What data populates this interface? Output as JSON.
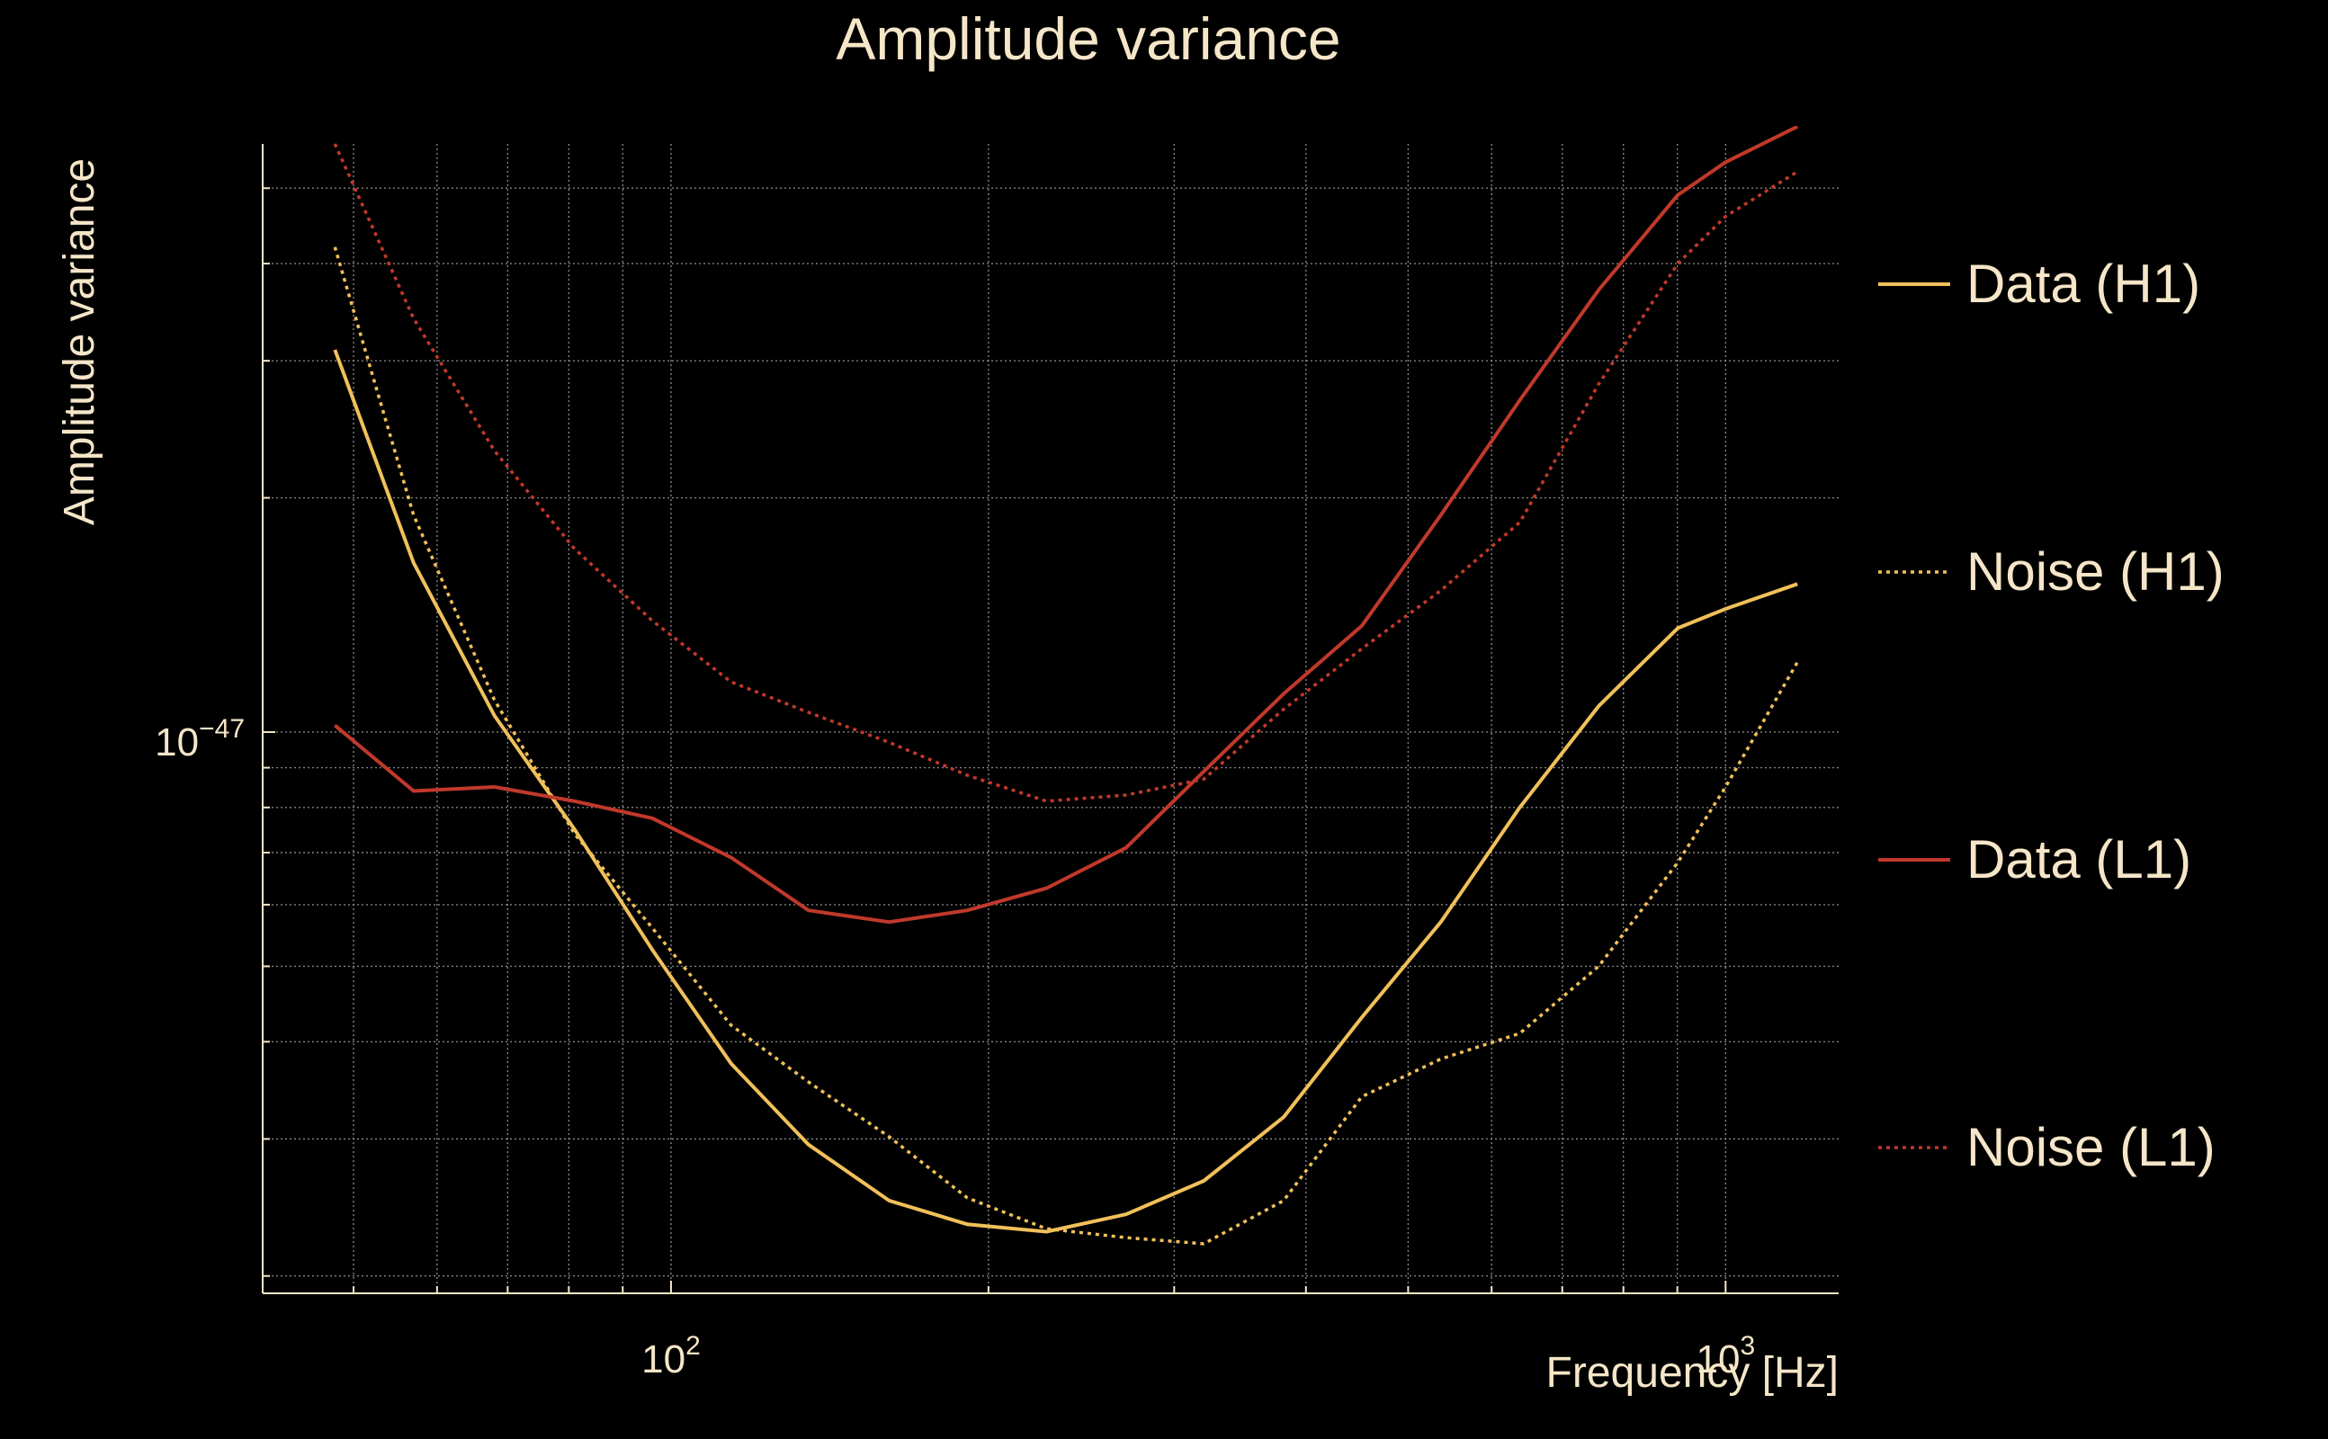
{
  "chart_data": {
    "type": "line",
    "title": "Amplitude variance",
    "xlabel": "Frequency [Hz]",
    "ylabel": "Amplitude variance",
    "x_scale": "log",
    "y_scale": "log",
    "xlim": [
      41,
      1280
    ],
    "ylim": [
      1.9e-48,
      5.7e-47
    ],
    "x_ticks": [
      {
        "value": 100,
        "base": "10",
        "exp": "2"
      },
      {
        "value": 1000,
        "base": "10",
        "exp": "3"
      }
    ],
    "y_ticks": [
      {
        "value": 1e-47,
        "base": "10",
        "exp": "−47"
      }
    ],
    "grid": true,
    "legend_position": "right",
    "x": [
      48,
      57,
      68,
      81,
      96,
      114,
      135,
      161,
      191,
      227,
      270,
      320,
      381,
      452,
      537,
      638,
      758,
      901,
      1000,
      1170
    ],
    "series": [
      {
        "name": "Data (H1)",
        "color": "#f0c05a",
        "dash": "solid",
        "values": [
          3.1e-47,
          1.65e-47,
          1.05e-47,
          7.5e-48,
          5.25e-48,
          3.75e-48,
          2.95e-48,
          2.5e-48,
          2.33e-48,
          2.28e-48,
          2.4e-48,
          2.65e-48,
          3.2e-48,
          4.3e-48,
          5.7e-48,
          8e-48,
          1.08e-47,
          1.36e-47,
          1.44e-47,
          1.55e-47
        ]
      },
      {
        "name": "Noise (H1)",
        "color": "#f0c05a",
        "dash": "dotted",
        "values": [
          4.2e-47,
          1.9e-47,
          1.1e-47,
          7.4e-48,
          5.6e-48,
          4.2e-48,
          3.55e-48,
          3.02e-48,
          2.52e-48,
          2.3e-48,
          2.24e-48,
          2.2e-48,
          2.5e-48,
          3.4e-48,
          3.8e-48,
          4.1e-48,
          5e-48,
          6.8e-48,
          8.5e-48,
          1.23e-47
        ]
      },
      {
        "name": "Data (L1)",
        "color": "#c0392b",
        "dash": "solid",
        "values": [
          1.02e-47,
          8.4e-48,
          8.5e-48,
          8.15e-48,
          7.75e-48,
          6.9e-48,
          5.9e-48,
          5.7e-48,
          5.9e-48,
          6.3e-48,
          7.1e-48,
          8.9e-48,
          1.12e-47,
          1.37e-47,
          1.9e-47,
          2.67e-47,
          3.7e-47,
          4.9e-47,
          5.4e-47,
          6e-47
        ]
      },
      {
        "name": "Noise (L1)",
        "color": "#c0392b",
        "dash": "dotted",
        "values": [
          5.7e-47,
          3.4e-47,
          2.3e-47,
          1.72e-47,
          1.39e-47,
          1.16e-47,
          1.06e-47,
          9.7e-48,
          8.8e-48,
          8.15e-48,
          8.3e-48,
          8.7e-48,
          1.07e-47,
          1.28e-47,
          1.52e-47,
          1.86e-47,
          2.8e-47,
          4e-47,
          4.6e-47,
          5.25e-47
        ]
      }
    ]
  }
}
